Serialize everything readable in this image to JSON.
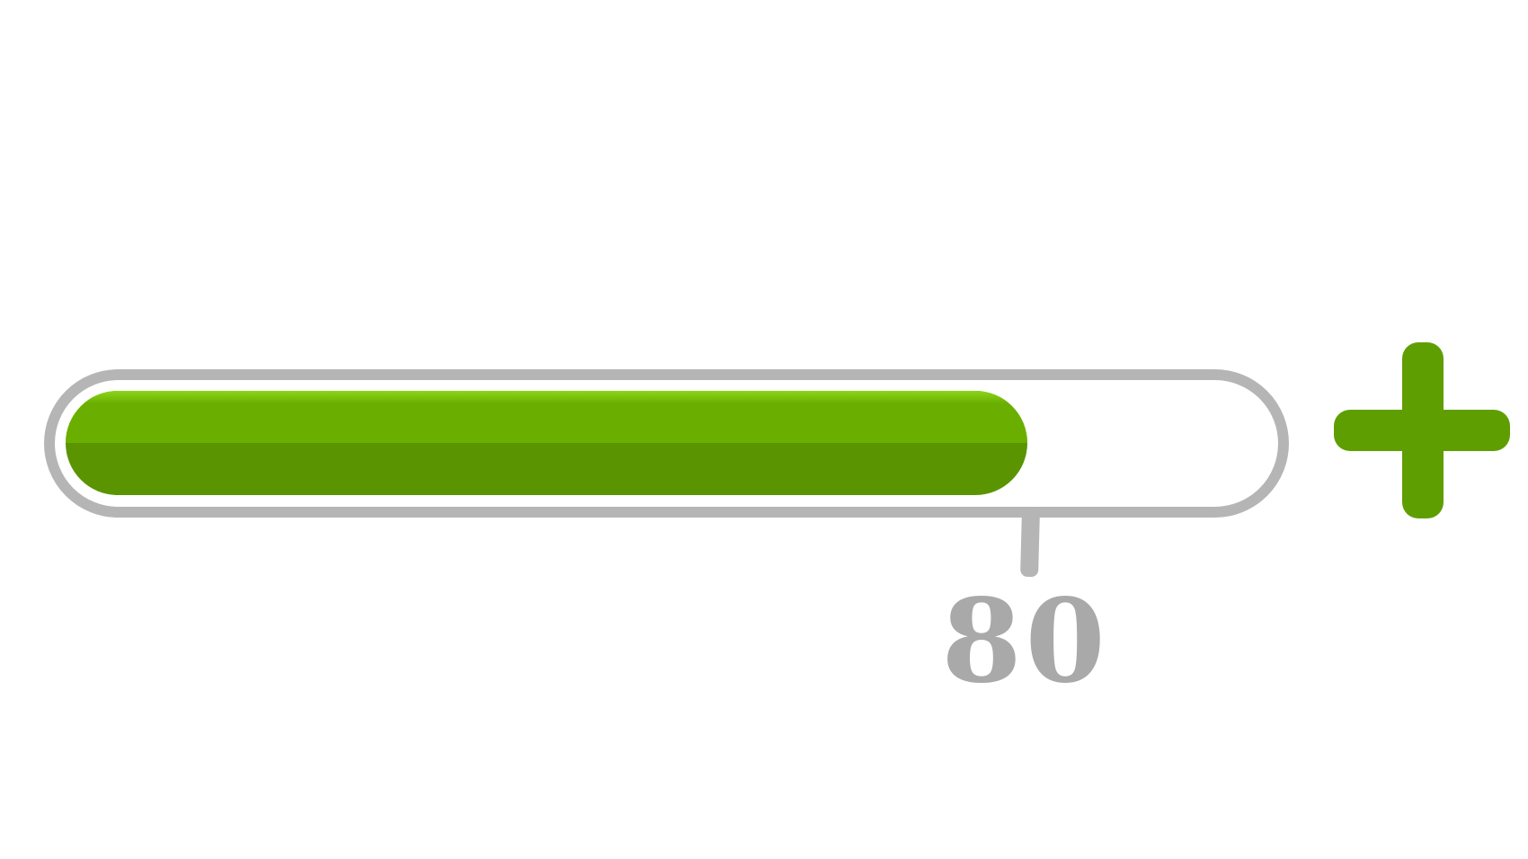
{
  "progress": {
    "value": 80,
    "max": 100,
    "display_value": "80",
    "fill_color": "#5f9e00",
    "track_color": "#b5b5b5"
  },
  "controls": {
    "increase_icon": "plus-icon"
  }
}
